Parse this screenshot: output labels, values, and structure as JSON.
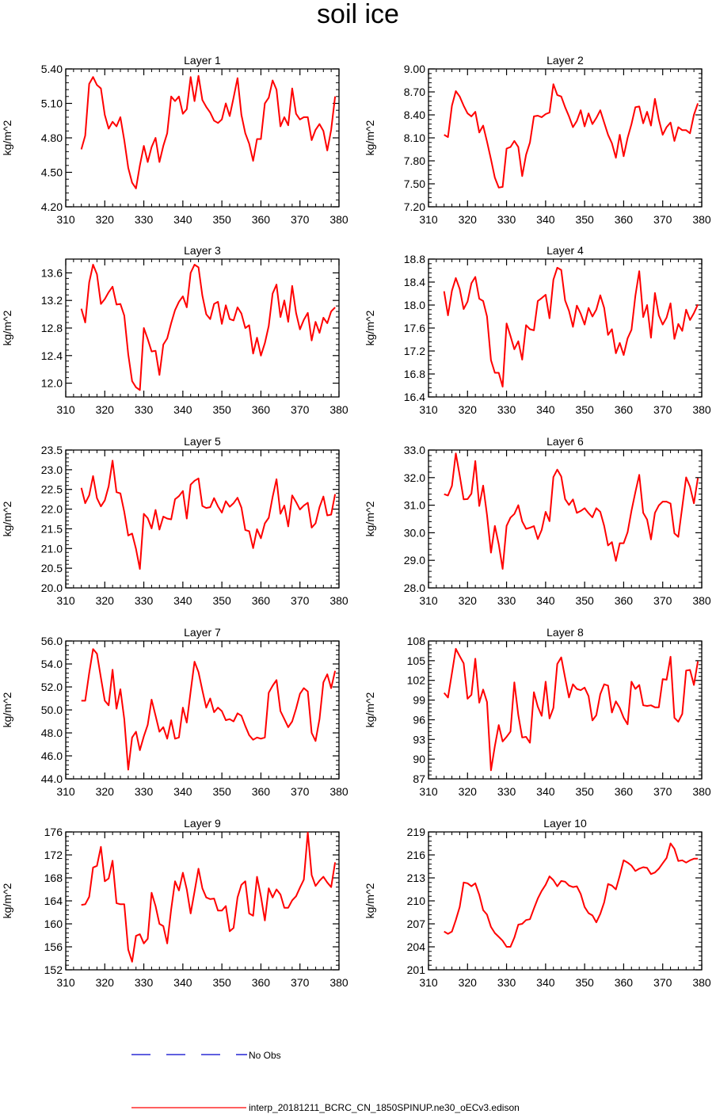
{
  "title": "soil ice",
  "ylabel": "kg/m^2",
  "legend": {
    "obs_label": "No Obs",
    "model_label": "interp_20181211_BCRC_CN_1850SPINUP.ne30_oECv3.edison",
    "obs_color": "#0000cc",
    "model_color": "#ff0000"
  },
  "chart_data": [
    {
      "type": "line",
      "title": "Layer 1",
      "xlim": [
        310,
        380
      ],
      "ylim": [
        4.2,
        5.4
      ],
      "xticks": [
        "310",
        "320",
        "330",
        "340",
        "350",
        "360",
        "370",
        "380"
      ],
      "yticks": [
        "4.20",
        "4.50",
        "4.80",
        "5.10",
        "5.40"
      ],
      "x_start": 314,
      "values": [
        4.7,
        4.82,
        5.27,
        5.33,
        5.26,
        5.23,
        5.0,
        4.88,
        4.94,
        4.9,
        4.98,
        4.78,
        4.54,
        4.41,
        4.36,
        4.56,
        4.73,
        4.59,
        4.72,
        4.8,
        4.59,
        4.73,
        4.84,
        5.16,
        5.12,
        5.16,
        5.01,
        5.05,
        5.33,
        5.12,
        5.34,
        5.13,
        5.07,
        5.02,
        4.95,
        4.93,
        4.96,
        5.1,
        4.99,
        5.15,
        5.32,
        5.0,
        4.84,
        4.75,
        4.6,
        4.79,
        4.79,
        5.1,
        5.15,
        5.3,
        5.22,
        4.9,
        4.98,
        4.91,
        5.23,
        5.01,
        4.96,
        4.98,
        4.98,
        4.78,
        4.87,
        4.92,
        4.86,
        4.69,
        4.87,
        5.16
      ]
    },
    {
      "type": "line",
      "title": "Layer 2",
      "xlim": [
        310,
        380
      ],
      "ylim": [
        7.2,
        9.0
      ],
      "xticks": [
        "310",
        "320",
        "330",
        "340",
        "350",
        "360",
        "370",
        "380"
      ],
      "yticks": [
        "7.20",
        "7.50",
        "7.80",
        "8.10",
        "8.40",
        "8.70",
        "9.00"
      ],
      "x_start": 314,
      "values": [
        8.14,
        8.11,
        8.52,
        8.71,
        8.64,
        8.52,
        8.42,
        8.38,
        8.44,
        8.17,
        8.26,
        8.05,
        7.82,
        7.58,
        7.45,
        7.46,
        7.96,
        7.98,
        8.06,
        7.98,
        7.6,
        7.88,
        8.04,
        8.38,
        8.39,
        8.37,
        8.41,
        8.43,
        8.8,
        8.66,
        8.64,
        8.5,
        8.38,
        8.24,
        8.32,
        8.46,
        8.25,
        8.42,
        8.28,
        8.36,
        8.46,
        8.3,
        8.14,
        8.03,
        7.84,
        8.14,
        7.86,
        8.1,
        8.28,
        8.5,
        8.51,
        8.29,
        8.44,
        8.26,
        8.61,
        8.34,
        8.14,
        8.24,
        8.3,
        8.06,
        8.24,
        8.2,
        8.2,
        8.16,
        8.4,
        8.55
      ]
    },
    {
      "type": "line",
      "title": "Layer 3",
      "xlim": [
        310,
        380
      ],
      "ylim": [
        11.8,
        13.8
      ],
      "xticks": [
        "310",
        "320",
        "330",
        "340",
        "350",
        "360",
        "370",
        "380"
      ],
      "yticks": [
        "12.0",
        "12.4",
        "12.8",
        "13.2",
        "13.6"
      ],
      "x_start": 314,
      "values": [
        13.08,
        12.88,
        13.46,
        13.72,
        13.58,
        13.15,
        13.22,
        13.32,
        13.4,
        13.14,
        13.15,
        12.98,
        12.42,
        12.03,
        11.94,
        11.9,
        12.8,
        12.64,
        12.46,
        12.47,
        12.12,
        12.56,
        12.65,
        12.87,
        13.06,
        13.18,
        13.26,
        13.1,
        13.6,
        13.72,
        13.68,
        13.27,
        13.0,
        12.93,
        13.15,
        13.18,
        12.86,
        13.13,
        12.93,
        12.91,
        13.1,
        13.01,
        12.8,
        12.84,
        12.43,
        12.66,
        12.4,
        12.58,
        12.83,
        13.3,
        13.43,
        12.96,
        13.2,
        12.89,
        13.41,
        13.02,
        12.78,
        12.92,
        13.02,
        12.62,
        12.89,
        12.73,
        12.95,
        12.87,
        13.04,
        13.1
      ]
    },
    {
      "type": "line",
      "title": "Layer 4",
      "xlim": [
        310,
        380
      ],
      "ylim": [
        16.4,
        18.8
      ],
      "xticks": [
        "310",
        "320",
        "330",
        "340",
        "350",
        "360",
        "370",
        "380"
      ],
      "yticks": [
        "16.4",
        "16.8",
        "17.2",
        "17.6",
        "18.0",
        "18.4",
        "18.8"
      ],
      "x_start": 314,
      "values": [
        18.24,
        17.82,
        18.25,
        18.47,
        18.28,
        17.93,
        18.06,
        18.38,
        18.49,
        18.11,
        18.07,
        17.8,
        17.04,
        16.82,
        16.82,
        16.58,
        17.68,
        17.46,
        17.23,
        17.37,
        17.05,
        17.65,
        17.58,
        17.56,
        18.07,
        18.12,
        18.18,
        17.77,
        18.44,
        18.65,
        18.61,
        18.08,
        17.9,
        17.62,
        17.99,
        17.85,
        17.66,
        17.95,
        17.8,
        17.92,
        18.17,
        17.95,
        17.48,
        17.58,
        17.16,
        17.34,
        17.13,
        17.42,
        17.57,
        18.16,
        18.59,
        17.79,
        18.0,
        17.43,
        18.21,
        17.82,
        17.66,
        17.78,
        18.03,
        17.41,
        17.67,
        17.55,
        17.92,
        17.74,
        17.86,
        18.01
      ]
    },
    {
      "type": "line",
      "title": "Layer 5",
      "xlim": [
        310,
        380
      ],
      "ylim": [
        20.0,
        23.5
      ],
      "xticks": [
        "310",
        "320",
        "330",
        "340",
        "350",
        "360",
        "370",
        "380"
      ],
      "yticks": [
        "20.0",
        "20.5",
        "21.0",
        "21.5",
        "22.0",
        "22.5",
        "23.0",
        "23.5"
      ],
      "x_start": 314,
      "values": [
        22.54,
        22.15,
        22.35,
        22.84,
        22.28,
        22.07,
        22.22,
        22.58,
        23.23,
        22.43,
        22.4,
        21.93,
        21.33,
        21.38,
        20.99,
        20.48,
        21.88,
        21.77,
        21.51,
        21.98,
        21.48,
        21.81,
        21.76,
        21.74,
        22.25,
        22.33,
        22.46,
        21.76,
        22.62,
        22.72,
        22.78,
        22.08,
        22.03,
        22.05,
        22.28,
        22.07,
        21.91,
        22.2,
        22.06,
        22.15,
        22.29,
        22.04,
        21.47,
        21.44,
        21.01,
        21.49,
        21.26,
        21.64,
        21.78,
        22.31,
        22.76,
        21.88,
        22.09,
        21.56,
        22.35,
        22.18,
        21.99,
        22.09,
        22.16,
        21.53,
        21.64,
        22.05,
        22.32,
        21.84,
        21.86,
        22.38
      ]
    },
    {
      "type": "line",
      "title": "Layer 6",
      "xlim": [
        310,
        380
      ],
      "ylim": [
        28.0,
        33.0
      ],
      "xticks": [
        "310",
        "320",
        "330",
        "340",
        "350",
        "360",
        "370",
        "380"
      ],
      "yticks": [
        "28.0",
        "29.0",
        "30.0",
        "31.0",
        "32.0",
        "33.0"
      ],
      "x_start": 314,
      "values": [
        31.4,
        31.35,
        31.7,
        32.88,
        32.08,
        31.21,
        31.22,
        31.42,
        32.6,
        30.97,
        31.71,
        30.64,
        29.28,
        30.25,
        29.58,
        28.69,
        30.25,
        30.55,
        30.68,
        31.0,
        30.41,
        30.14,
        30.18,
        30.24,
        29.77,
        30.1,
        30.76,
        30.42,
        32.02,
        32.29,
        32.04,
        31.22,
        31.01,
        31.21,
        30.72,
        30.79,
        30.89,
        30.71,
        30.56,
        30.89,
        30.76,
        30.25,
        29.54,
        29.66,
        28.98,
        29.62,
        29.62,
        30.02,
        30.8,
        31.47,
        32.1,
        30.72,
        30.48,
        29.76,
        30.72,
        30.99,
        31.13,
        31.13,
        31.06,
        29.98,
        29.85,
        30.94,
        32.01,
        31.67,
        31.07,
        31.98
      ]
    },
    {
      "type": "line",
      "title": "Layer 7",
      "xlim": [
        310,
        380
      ],
      "ylim": [
        44.0,
        56.0
      ],
      "xticks": [
        "310",
        "320",
        "330",
        "340",
        "350",
        "360",
        "370",
        "380"
      ],
      "yticks": [
        "44.0",
        "46.0",
        "48.0",
        "50.0",
        "52.0",
        "54.0",
        "56.0"
      ],
      "x_start": 314,
      "values": [
        50.8,
        50.8,
        53.2,
        55.3,
        54.9,
        52.8,
        50.8,
        50.4,
        53.5,
        50.1,
        51.8,
        49.2,
        44.8,
        47.6,
        48.1,
        46.5,
        47.7,
        48.7,
        50.9,
        49.5,
        48.1,
        48.5,
        47.5,
        49.1,
        47.5,
        47.6,
        50.2,
        48.9,
        51.6,
        54.2,
        53.3,
        51.7,
        50.2,
        51.0,
        49.8,
        50.2,
        49.9,
        49.1,
        49.2,
        49.0,
        49.7,
        49.5,
        48.6,
        47.8,
        47.4,
        47.6,
        47.5,
        47.6,
        51.5,
        52.1,
        52.6,
        49.9,
        49.2,
        48.5,
        49.0,
        50.1,
        51.4,
        51.9,
        51.6,
        48.0,
        47.3,
        49.2,
        52.4,
        53.1,
        51.9,
        53.4
      ]
    },
    {
      "type": "line",
      "title": "Layer 8",
      "xlim": [
        310,
        380
      ],
      "ylim": [
        87,
        108
      ],
      "xticks": [
        "310",
        "320",
        "330",
        "340",
        "350",
        "360",
        "370",
        "380"
      ],
      "yticks": [
        "87",
        "90",
        "93",
        "96",
        "99",
        "102",
        "105",
        "108"
      ],
      "x_start": 314,
      "values": [
        100.1,
        99.4,
        103.1,
        106.8,
        105.7,
        104.6,
        99.2,
        99.8,
        105.3,
        98.6,
        100.6,
        98.7,
        88.3,
        92.0,
        95.2,
        92.7,
        93.4,
        94.2,
        101.7,
        96.7,
        93.3,
        93.4,
        92.5,
        100.2,
        98.0,
        96.6,
        101.8,
        96.2,
        97.8,
        104.5,
        105.5,
        102.4,
        99.4,
        101.4,
        100.7,
        100.5,
        100.9,
        99.6,
        95.9,
        96.7,
        99.9,
        101.4,
        101.2,
        97.1,
        98.8,
        97.8,
        96.3,
        95.3,
        101.8,
        100.7,
        101.3,
        98.2,
        98.1,
        98.2,
        97.9,
        97.9,
        102.2,
        102.1,
        105.6,
        96.3,
        95.7,
        96.9,
        103.5,
        103.6,
        101.3,
        104.9
      ]
    },
    {
      "type": "line",
      "title": "Layer 9",
      "xlim": [
        310,
        380
      ],
      "ylim": [
        152,
        176
      ],
      "xticks": [
        "310",
        "320",
        "330",
        "340",
        "350",
        "360",
        "370",
        "380"
      ],
      "yticks": [
        "152",
        "156",
        "160",
        "164",
        "168",
        "172",
        "176"
      ],
      "x_start": 314,
      "values": [
        163.3,
        163.4,
        164.7,
        169.8,
        170.1,
        173.4,
        167.4,
        167.9,
        171.0,
        163.6,
        163.4,
        163.4,
        155.5,
        153.4,
        157.9,
        158.2,
        156.6,
        157.4,
        165.4,
        163.1,
        160.0,
        159.6,
        156.6,
        162.5,
        167.4,
        165.8,
        168.9,
        166.0,
        161.8,
        165.6,
        169.6,
        166.2,
        164.6,
        164.3,
        164.4,
        162.3,
        162.3,
        163.1,
        158.7,
        159.3,
        164.6,
        166.8,
        167.4,
        161.8,
        161.4,
        168.2,
        164.8,
        160.6,
        166.2,
        164.6,
        166.0,
        165.1,
        162.8,
        162.8,
        164.1,
        164.8,
        166.3,
        167.7,
        175.9,
        168.5,
        166.6,
        167.5,
        168.2,
        167.2,
        166.4,
        170.7
      ]
    },
    {
      "type": "line",
      "title": "Layer 10",
      "xlim": [
        310,
        380
      ],
      "ylim": [
        201,
        219
      ],
      "xticks": [
        "310",
        "320",
        "330",
        "340",
        "350",
        "360",
        "370",
        "380"
      ],
      "yticks": [
        "201",
        "204",
        "207",
        "210",
        "213",
        "216",
        "219"
      ],
      "x_start": 314,
      "values": [
        206.0,
        205.7,
        206.0,
        207.5,
        209.2,
        212.4,
        212.3,
        211.9,
        212.3,
        210.8,
        208.8,
        208.2,
        206.6,
        205.8,
        205.3,
        204.8,
        204.0,
        204.0,
        205.2,
        206.9,
        207.0,
        207.5,
        207.6,
        209.0,
        210.3,
        211.3,
        212.1,
        213.2,
        212.7,
        211.9,
        212.6,
        212.5,
        212.0,
        211.8,
        211.9,
        210.9,
        209.2,
        208.4,
        208.1,
        207.2,
        208.3,
        209.8,
        212.2,
        212.0,
        211.5,
        213.3,
        215.3,
        215.0,
        214.6,
        213.9,
        214.2,
        214.4,
        214.3,
        213.5,
        213.7,
        214.2,
        214.9,
        215.6,
        217.5,
        216.8,
        215.2,
        215.3,
        215.0,
        215.3,
        215.5,
        215.5
      ]
    }
  ]
}
